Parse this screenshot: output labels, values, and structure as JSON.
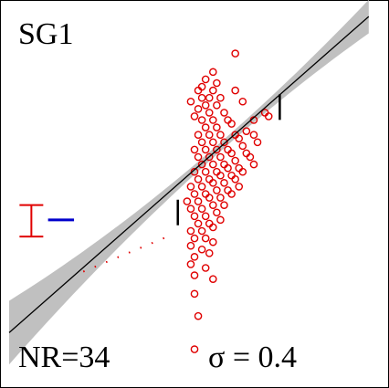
{
  "panel": {
    "label": "SG1",
    "nr_text": "NR=34",
    "sigma_text": "σ = 0.4"
  },
  "chart_data": {
    "type": "scatter",
    "title": "SG1",
    "xlabel": "",
    "ylabel": "",
    "xlim": [
      0,
      1
    ],
    "ylim": [
      0,
      1
    ],
    "grid": false,
    "colors": {
      "points": "#e00000",
      "fit_line": "#000000",
      "confidence_band": "#c0c0c0",
      "error_bar": "#e00000",
      "reference_bar": "#0000cc",
      "dotted_line": "#e00000"
    },
    "fit_line": {
      "x": [
        0.0,
        0.97
      ],
      "y": [
        0.125,
        0.98
      ]
    },
    "dotted_line": {
      "x": [
        0.2,
        0.44
      ],
      "y": [
        0.29,
        0.39
      ]
    },
    "range_ticks": [
      {
        "x": 0.455,
        "y": 0.45
      },
      {
        "x": 0.73,
        "y": 0.735
      }
    ],
    "error_bar": {
      "x": 0.06,
      "y_low": 0.385,
      "y_high": 0.47
    },
    "reference_bar": {
      "x_start": 0.105,
      "x_end": 0.175,
      "y": 0.43
    },
    "series": [
      {
        "values": [
          [
            0.61,
            0.88
          ],
          [
            0.55,
            0.83
          ],
          [
            0.53,
            0.81
          ],
          [
            0.56,
            0.8
          ],
          [
            0.52,
            0.79
          ],
          [
            0.51,
            0.78
          ],
          [
            0.55,
            0.78
          ],
          [
            0.61,
            0.78
          ],
          [
            0.52,
            0.76
          ],
          [
            0.54,
            0.76
          ],
          [
            0.57,
            0.76
          ],
          [
            0.49,
            0.75
          ],
          [
            0.53,
            0.74
          ],
          [
            0.56,
            0.74
          ],
          [
            0.63,
            0.75
          ],
          [
            0.51,
            0.73
          ],
          [
            0.54,
            0.72
          ],
          [
            0.58,
            0.72
          ],
          [
            0.5,
            0.71
          ],
          [
            0.52,
            0.7
          ],
          [
            0.55,
            0.7
          ],
          [
            0.59,
            0.7
          ],
          [
            0.69,
            0.72
          ],
          [
            0.53,
            0.68
          ],
          [
            0.56,
            0.68
          ],
          [
            0.6,
            0.69
          ],
          [
            0.66,
            0.7
          ],
          [
            0.7,
            0.71
          ],
          [
            0.51,
            0.66
          ],
          [
            0.54,
            0.66
          ],
          [
            0.57,
            0.66
          ],
          [
            0.61,
            0.66
          ],
          [
            0.64,
            0.67
          ],
          [
            0.52,
            0.64
          ],
          [
            0.55,
            0.64
          ],
          [
            0.58,
            0.64
          ],
          [
            0.62,
            0.65
          ],
          [
            0.66,
            0.66
          ],
          [
            0.5,
            0.62
          ],
          [
            0.53,
            0.62
          ],
          [
            0.56,
            0.62
          ],
          [
            0.59,
            0.62
          ],
          [
            0.63,
            0.63
          ],
          [
            0.67,
            0.64
          ],
          [
            0.51,
            0.6
          ],
          [
            0.54,
            0.6
          ],
          [
            0.57,
            0.6
          ],
          [
            0.6,
            0.61
          ],
          [
            0.64,
            0.61
          ],
          [
            0.52,
            0.58
          ],
          [
            0.55,
            0.58
          ],
          [
            0.58,
            0.58
          ],
          [
            0.61,
            0.59
          ],
          [
            0.65,
            0.6
          ],
          [
            0.5,
            0.56
          ],
          [
            0.53,
            0.56
          ],
          [
            0.56,
            0.56
          ],
          [
            0.59,
            0.57
          ],
          [
            0.62,
            0.57
          ],
          [
            0.66,
            0.58
          ],
          [
            0.51,
            0.54
          ],
          [
            0.54,
            0.54
          ],
          [
            0.57,
            0.55
          ],
          [
            0.6,
            0.55
          ],
          [
            0.63,
            0.56
          ],
          [
            0.49,
            0.52
          ],
          [
            0.52,
            0.52
          ],
          [
            0.55,
            0.53
          ],
          [
            0.58,
            0.53
          ],
          [
            0.61,
            0.54
          ],
          [
            0.5,
            0.5
          ],
          [
            0.53,
            0.5
          ],
          [
            0.56,
            0.51
          ],
          [
            0.59,
            0.51
          ],
          [
            0.62,
            0.52
          ],
          [
            0.48,
            0.48
          ],
          [
            0.51,
            0.48
          ],
          [
            0.54,
            0.49
          ],
          [
            0.57,
            0.49
          ],
          [
            0.6,
            0.5
          ],
          [
            0.49,
            0.46
          ],
          [
            0.52,
            0.46
          ],
          [
            0.55,
            0.47
          ],
          [
            0.58,
            0.47
          ],
          [
            0.5,
            0.44
          ],
          [
            0.53,
            0.44
          ],
          [
            0.56,
            0.45
          ],
          [
            0.51,
            0.42
          ],
          [
            0.54,
            0.42
          ],
          [
            0.57,
            0.43
          ],
          [
            0.49,
            0.4
          ],
          [
            0.52,
            0.4
          ],
          [
            0.55,
            0.41
          ],
          [
            0.5,
            0.38
          ],
          [
            0.53,
            0.38
          ],
          [
            0.49,
            0.36
          ],
          [
            0.52,
            0.35
          ],
          [
            0.55,
            0.37
          ],
          [
            0.5,
            0.33
          ],
          [
            0.54,
            0.34
          ],
          [
            0.49,
            0.31
          ],
          [
            0.53,
            0.3
          ],
          [
            0.5,
            0.28
          ],
          [
            0.55,
            0.27
          ],
          [
            0.5,
            0.23
          ],
          [
            0.51,
            0.17
          ],
          [
            0.5,
            0.08
          ]
        ]
      }
    ]
  }
}
